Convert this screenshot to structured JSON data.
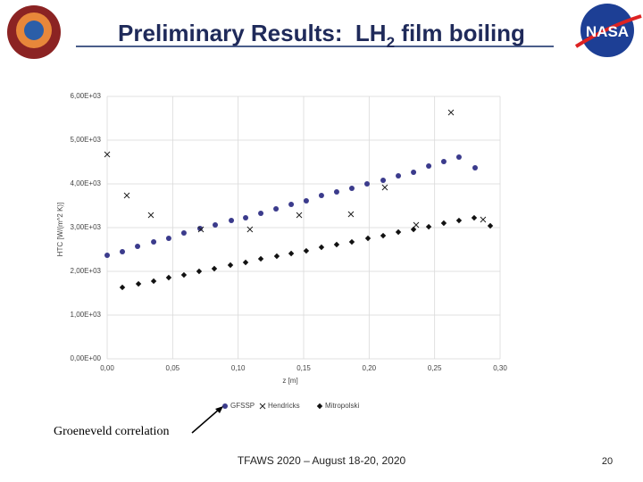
{
  "slide": {
    "title_parts": [
      "Preliminary Results:  LH",
      "2",
      " film boiling"
    ],
    "logo_text": "NASA",
    "annotation": "Groeneveld correlation",
    "footer": "TFAWS 2020 – August 18-20, 2020",
    "page_number": 20
  },
  "chart_data": {
    "type": "scatter",
    "x_label": "z [m]",
    "y_label": "HTC [W/(m^2 K)]",
    "xlim": [
      0,
      0.3
    ],
    "ylim": [
      0,
      6000
    ],
    "xticks": [
      {
        "value": 0,
        "label": "0,00"
      },
      {
        "value": 0.05,
        "label": "0,05"
      },
      {
        "value": 0.1,
        "label": "0,10"
      },
      {
        "value": 0.15,
        "label": "0,15"
      },
      {
        "value": 0.2,
        "label": "0,20"
      },
      {
        "value": 0.25,
        "label": "0,25"
      },
      {
        "value": 0.3,
        "label": "0,30"
      }
    ],
    "yticks": [
      {
        "value": 0,
        "label": "0,00E+00"
      },
      {
        "value": 1000,
        "label": "1,00E+03"
      },
      {
        "value": 2000,
        "label": "2,00E+03"
      },
      {
        "value": 3000,
        "label": "3,00E+03"
      },
      {
        "value": 4000,
        "label": "4,00E+03"
      },
      {
        "value": 5000,
        "label": "5,00E+03"
      },
      {
        "value": 6000,
        "label": "6,00E+03"
      }
    ],
    "grid": true,
    "legend": "bottom",
    "series": [
      {
        "name": "GFSSP",
        "color": "#3b3b8c",
        "marker": "circle",
        "x": [
          0,
          0.0116,
          0.0232,
          0.0355,
          0.047,
          0.0586,
          0.0709,
          0.0825,
          0.0948,
          0.1057,
          0.1173,
          0.1289,
          0.1405,
          0.152,
          0.1636,
          0.1752,
          0.1868,
          0.1984,
          0.2107,
          0.2223,
          0.2339,
          0.2455,
          0.257,
          0.2686,
          0.2809
        ],
        "values": [
          2367,
          2449,
          2571,
          2673,
          2755,
          2878,
          2980,
          3061,
          3163,
          3224,
          3327,
          3429,
          3531,
          3612,
          3735,
          3816,
          3898,
          4000,
          4082,
          4184,
          4265,
          4408,
          4510,
          4612,
          4367
        ]
      },
      {
        "name": "Hendricks",
        "color": "#222222",
        "marker": "x",
        "x": [
          0,
          0.015,
          0.0334,
          0.0716,
          0.109,
          0.1466,
          0.1861,
          0.212,
          0.2359,
          0.2625,
          0.287
        ],
        "values": [
          4673,
          3735,
          3286,
          2959,
          2959,
          3286,
          3306,
          3918,
          3061,
          5633,
          3184
        ]
      },
      {
        "name": "Mitropolski",
        "color": "#111111",
        "marker": "diamond",
        "x": [
          0.0116,
          0.0239,
          0.0355,
          0.047,
          0.0586,
          0.0702,
          0.0818,
          0.0941,
          0.1057,
          0.1173,
          0.1295,
          0.1405,
          0.152,
          0.1636,
          0.1752,
          0.1868,
          0.1991,
          0.2107,
          0.2223,
          0.2339,
          0.2455,
          0.257,
          0.2686,
          0.2802,
          0.2925
        ],
        "values": [
          1633,
          1714,
          1776,
          1857,
          1918,
          2000,
          2061,
          2143,
          2204,
          2286,
          2347,
          2408,
          2469,
          2551,
          2612,
          2673,
          2755,
          2816,
          2898,
          2959,
          3020,
          3102,
          3163,
          3224,
          3041
        ]
      }
    ]
  }
}
